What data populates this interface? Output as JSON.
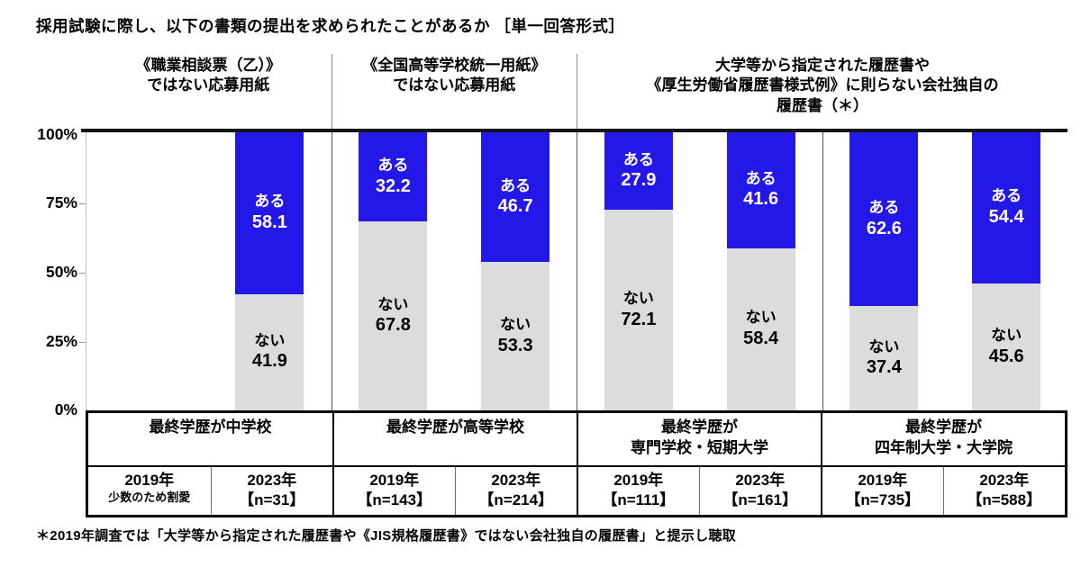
{
  "title": "採用試験に際し、以下の書類の提出を求められたことがあるか ［単一回答形式］",
  "colors": {
    "yes_fill": "#2318e8",
    "no_fill": "#dcdcdc",
    "yes_text": "#ffffff",
    "no_text": "#000000"
  },
  "series_labels": {
    "yes": "ある",
    "no": "ない"
  },
  "y_axis_ticks": [
    "100%",
    "75%",
    "50%",
    "25%",
    "0%"
  ],
  "document_headers": [
    {
      "lines": [
        "《職業相談票（乙）》",
        "ではない応募用紙"
      ]
    },
    {
      "lines": [
        "《全国高等学校統一用紙》",
        "ではない応募用紙"
      ]
    },
    {
      "lines": [
        "大学等から指定された履歴書や",
        "《厚生労働省履歴書様式例》に則らない会社独自の",
        "履歴書（＊）"
      ]
    }
  ],
  "chart_data": {
    "type": "bar",
    "stacked": true,
    "orientation": "vertical",
    "unit": "%",
    "ylim": [
      0,
      100
    ],
    "grid": false,
    "legend": [
      "ある",
      "ない"
    ],
    "groups": [
      {
        "label": "最終学歴が中学校",
        "bars": [
          {
            "year": "2019年",
            "note": "少数のため割愛",
            "omitted": true,
            "values": {
              "yes": null,
              "no": null
            }
          },
          {
            "year": "2023年",
            "n": 31,
            "values": {
              "yes": 58.1,
              "no": 41.9
            }
          }
        ]
      },
      {
        "label": "最終学歴が高等学校",
        "bars": [
          {
            "year": "2019年",
            "n": 143,
            "values": {
              "yes": 32.2,
              "no": 67.8
            }
          },
          {
            "year": "2023年",
            "n": 214,
            "values": {
              "yes": 46.7,
              "no": 53.3
            }
          }
        ]
      },
      {
        "label": "最終学歴が専門学校・短期大学",
        "bars": [
          {
            "year": "2019年",
            "n": 111,
            "values": {
              "yes": 27.9,
              "no": 72.1
            }
          },
          {
            "year": "2023年",
            "n": 161,
            "values": {
              "yes": 41.6,
              "no": 58.4
            }
          }
        ]
      },
      {
        "label": "最終学歴が四年制大学・大学院",
        "bars": [
          {
            "year": "2019年",
            "n": 735,
            "values": {
              "yes": 62.6,
              "no": 37.4
            }
          },
          {
            "year": "2023年",
            "n": 588,
            "values": {
              "yes": 54.4,
              "no": 45.6
            }
          }
        ]
      }
    ]
  },
  "table": {
    "group_labels": [
      {
        "lines": [
          "最終学歴が中学校"
        ]
      },
      {
        "lines": [
          "最終学歴が高等学校"
        ]
      },
      {
        "lines": [
          "最終学歴が",
          "専門学校・短期大学"
        ]
      },
      {
        "lines": [
          "最終学歴が",
          "四年制大学・大学院"
        ]
      }
    ],
    "cells": [
      {
        "year": "2019年",
        "sub": "少数のため割愛"
      },
      {
        "year": "2023年",
        "sub": "【n=31】"
      },
      {
        "year": "2019年",
        "sub": "【n=143】"
      },
      {
        "year": "2023年",
        "sub": "【n=214】"
      },
      {
        "year": "2019年",
        "sub": "【n=111】"
      },
      {
        "year": "2023年",
        "sub": "【n=161】"
      },
      {
        "year": "2019年",
        "sub": "【n=735】"
      },
      {
        "year": "2023年",
        "sub": "【n=588】"
      }
    ]
  },
  "footnote": "＊2019年調査では「大学等から指定された履歴書や《JIS規格履歴書》ではない会社独自の履歴書」と提示し聴取"
}
